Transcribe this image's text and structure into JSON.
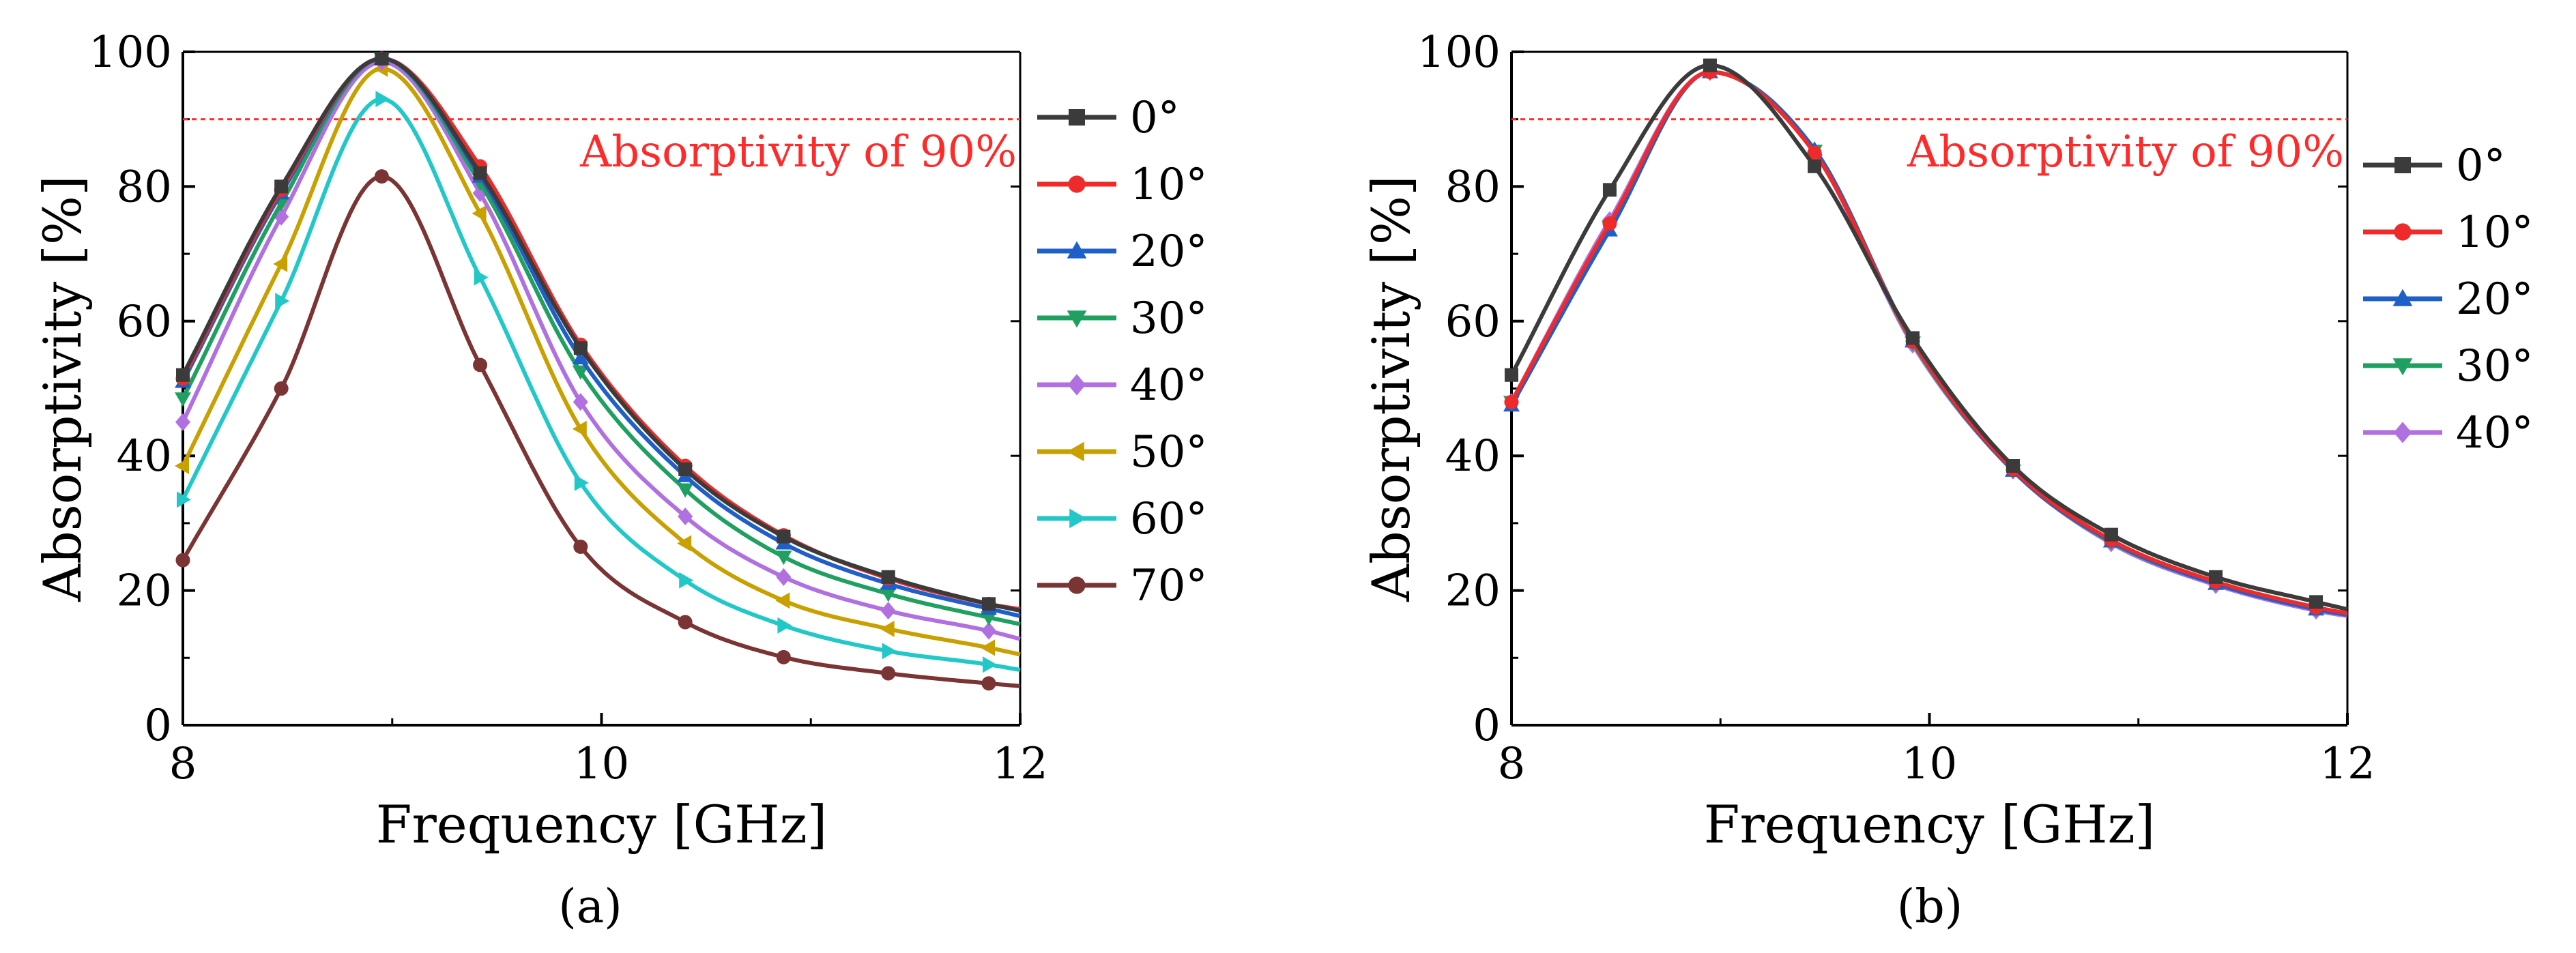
{
  "chart_data": [
    {
      "type": "line",
      "panel_label": "(a)",
      "xlabel": "Frequency [GHz]",
      "ylabel": "Absorptivity [%]",
      "xlim": [
        8,
        12
      ],
      "ylim": [
        0,
        100
      ],
      "xticks": [
        8,
        10,
        12
      ],
      "yticks": [
        0,
        20,
        40,
        60,
        80,
        100
      ],
      "reference_line": {
        "value": 90,
        "label": "Absorptivity of 90%",
        "color": "#ff2a2a"
      },
      "legend_position": "right",
      "marker_x": [
        8.0,
        8.47,
        8.95,
        9.42,
        9.9,
        10.4,
        10.87,
        11.37,
        11.85
      ],
      "series": [
        {
          "name": "0°",
          "color": "#3b3b3b",
          "marker": "square",
          "x": [
            8.0,
            8.47,
            8.95,
            9.42,
            9.9,
            10.4,
            10.87,
            11.37,
            11.85,
            12.0
          ],
          "values": [
            52,
            80,
            99,
            82,
            56,
            38,
            28,
            22,
            18,
            17
          ]
        },
        {
          "name": "10°",
          "color": "#ee2a2a",
          "marker": "circle",
          "x": [
            8.0,
            8.47,
            8.95,
            9.42,
            9.9,
            10.4,
            10.87,
            11.37,
            11.85,
            12.0
          ],
          "values": [
            51.5,
            79.5,
            99,
            83,
            56.5,
            38.5,
            28.2,
            21.8,
            18,
            17.2
          ]
        },
        {
          "name": "20°",
          "color": "#1f5fc8",
          "marker": "triangle-up",
          "x": [
            8.0,
            8.47,
            8.95,
            9.42,
            9.9,
            10.4,
            10.87,
            11.37,
            11.85,
            12.0
          ],
          "values": [
            51,
            79,
            99,
            81.5,
            54.5,
            37,
            27,
            21,
            17.3,
            16.2
          ]
        },
        {
          "name": "30°",
          "color": "#20a060",
          "marker": "triangle-down",
          "x": [
            8.0,
            8.47,
            8.95,
            9.42,
            9.9,
            10.4,
            10.87,
            11.37,
            11.85,
            12.0
          ],
          "values": [
            48.5,
            77.5,
            99,
            80.5,
            52.5,
            35,
            25,
            19.5,
            16,
            15
          ]
        },
        {
          "name": "40°",
          "color": "#b070e0",
          "marker": "diamond",
          "x": [
            8.0,
            8.47,
            8.95,
            9.42,
            9.9,
            10.4,
            10.87,
            11.37,
            11.85,
            12.0
          ],
          "values": [
            45,
            75.5,
            98.5,
            79,
            48,
            31,
            22,
            17,
            14,
            12.8
          ]
        },
        {
          "name": "50°",
          "color": "#c8a000",
          "marker": "triangle-left",
          "x": [
            8.0,
            8.47,
            8.95,
            9.42,
            9.9,
            10.4,
            10.87,
            11.37,
            11.85,
            12.0
          ],
          "values": [
            38.5,
            68.5,
            97.5,
            76,
            44,
            27,
            18.5,
            14.3,
            11.5,
            10.5
          ]
        },
        {
          "name": "60°",
          "color": "#22c8c8",
          "marker": "triangle-right",
          "x": [
            8.0,
            8.47,
            8.95,
            9.42,
            9.9,
            10.4,
            10.87,
            11.37,
            11.85,
            12.0
          ],
          "values": [
            33.5,
            63,
            93,
            66.5,
            36,
            21.5,
            14.8,
            11,
            9,
            8.2
          ]
        },
        {
          "name": "70°",
          "color": "#7a3434",
          "marker": "circle",
          "x": [
            8.0,
            8.47,
            8.95,
            9.42,
            9.9,
            10.4,
            10.87,
            11.37,
            11.85,
            12.0
          ],
          "values": [
            24.5,
            50,
            81.5,
            53.5,
            26.5,
            15.3,
            10.1,
            7.7,
            6.2,
            5.8
          ]
        }
      ]
    },
    {
      "type": "line",
      "panel_label": "(b)",
      "xlabel": "Frequency [GHz]",
      "ylabel": "Absorptivity [%]",
      "xlim": [
        8,
        12
      ],
      "ylim": [
        0,
        100
      ],
      "xticks": [
        8,
        10,
        12
      ],
      "yticks": [
        0,
        20,
        40,
        60,
        80,
        100
      ],
      "reference_line": {
        "value": 90,
        "label": "Absorptivity of 90%",
        "color": "#ff2a2a"
      },
      "legend_position": "right",
      "marker_x": [
        8.0,
        8.47,
        8.95,
        9.45,
        9.92,
        10.4,
        10.87,
        11.37,
        11.85
      ],
      "series": [
        {
          "name": "0°",
          "color": "#3b3b3b",
          "marker": "square",
          "x": [
            8.0,
            8.47,
            8.95,
            9.45,
            9.92,
            10.4,
            10.87,
            11.37,
            11.85,
            12.0
          ],
          "values": [
            52,
            79.5,
            98,
            83,
            57.5,
            38.5,
            28.3,
            22,
            18.3,
            17.2
          ]
        },
        {
          "name": "10°",
          "color": "#ee2a2a",
          "marker": "circle",
          "x": [
            8.0,
            8.47,
            8.95,
            9.45,
            9.92,
            10.4,
            10.87,
            11.37,
            11.85,
            12.0
          ],
          "values": [
            48,
            74.5,
            97,
            85,
            57,
            38,
            27.5,
            21.3,
            17.5,
            16.6
          ]
        },
        {
          "name": "20°",
          "color": "#1f5fc8",
          "marker": "triangle-up",
          "x": [
            8.0,
            8.47,
            8.95,
            9.45,
            9.92,
            10.4,
            10.87,
            11.37,
            11.85,
            12.0
          ],
          "values": [
            47.5,
            73.5,
            97,
            85.5,
            57,
            37.8,
            27.3,
            21,
            17.2,
            16.4
          ]
        },
        {
          "name": "30°",
          "color": "#20a060",
          "marker": "triangle-down",
          "x": [
            8.0,
            8.47,
            8.95,
            9.45,
            9.92,
            10.4,
            10.87,
            11.37,
            11.85,
            12.0
          ],
          "values": [
            48,
            74,
            97,
            85.3,
            56.8,
            37.8,
            27.2,
            21,
            17.2,
            16.4
          ]
        },
        {
          "name": "40°",
          "color": "#b070e0",
          "marker": "diamond",
          "x": [
            8.0,
            8.47,
            8.95,
            9.45,
            9.92,
            10.4,
            10.87,
            11.37,
            11.85,
            12.0
          ],
          "values": [
            48,
            75,
            97,
            85,
            56.5,
            37.8,
            27,
            20.8,
            17,
            16.2
          ]
        }
      ]
    }
  ]
}
